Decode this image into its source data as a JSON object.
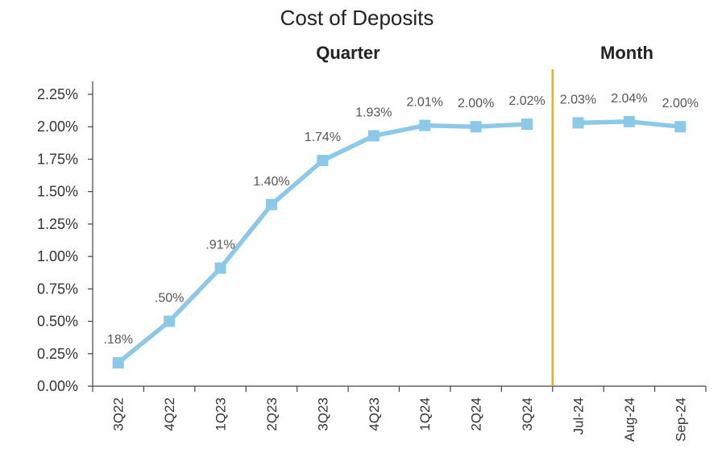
{
  "chart_data": {
    "type": "line",
    "title": "Cost of Deposits",
    "sections": [
      "Quarter",
      "Month"
    ],
    "categories": [
      "3Q22",
      "4Q22",
      "1Q23",
      "2Q23",
      "3Q23",
      "4Q23",
      "1Q24",
      "2Q24",
      "3Q24",
      "Jul-24",
      "Aug-24",
      "Sep-24"
    ],
    "series": [
      {
        "values": [
          0.18,
          0.5,
          0.91,
          1.4,
          1.74,
          1.93,
          2.01,
          2.0,
          2.02,
          2.03,
          2.04,
          2.0
        ],
        "data_labels": [
          ".18%",
          ".50%",
          ".91%",
          "1.40%",
          "1.74%",
          "1.93%",
          "2.01%",
          "2.00%",
          "2.02%",
          "2.03%",
          "2.04%",
          "2.00%"
        ],
        "segments": [
          [
            0,
            8
          ],
          [
            9,
            11
          ]
        ]
      }
    ],
    "ytick_labels": [
      "0.00%",
      "0.25%",
      "0.50%",
      "0.75%",
      "1.00%",
      "1.25%",
      "1.50%",
      "1.75%",
      "2.00%",
      "2.25%"
    ],
    "ylim": [
      0,
      2.25
    ],
    "ystep": 0.25,
    "divider_after_index": 8,
    "xlabel": "",
    "ylabel": "",
    "grid": false,
    "legend": "none",
    "colors": {
      "line": "#8cc8e8",
      "marker": "#8cc8e8",
      "divider": "#f0a830",
      "axis": "#444444"
    }
  }
}
